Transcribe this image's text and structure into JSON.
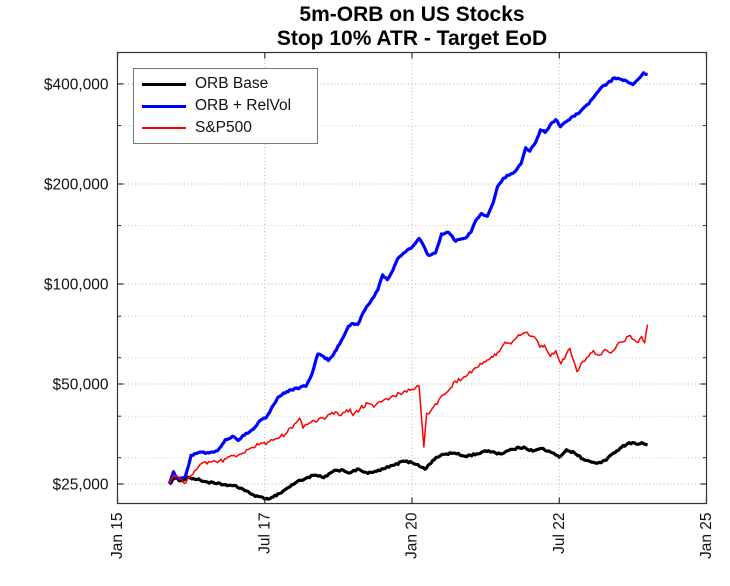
{
  "chart_data": {
    "type": "line",
    "title": "5m-ORB on US Stocks",
    "subtitle": "Stop 10% ATR - Target EoD",
    "grid": "on",
    "legend_position": "top-left",
    "x_axis": {
      "scale": "time-years",
      "lim": [
        2015.0,
        2025.0
      ],
      "ticks": [
        {
          "t": 2015.0,
          "label": "Jan 15"
        },
        {
          "t": 2017.5,
          "label": "Jul 17"
        },
        {
          "t": 2020.0,
          "label": "Jan 20"
        },
        {
          "t": 2022.5,
          "label": "Jul 22"
        },
        {
          "t": 2025.0,
          "label": "Jan 25"
        }
      ]
    },
    "y_axis": {
      "scale": "log",
      "lim": [
        21840,
        497400
      ],
      "ticks": [
        {
          "v": 25000,
          "label": "$25,000"
        },
        {
          "v": 50000,
          "label": "$50,000"
        },
        {
          "v": 100000,
          "label": "$100,000"
        },
        {
          "v": 200000,
          "label": "$200,000"
        },
        {
          "v": 400000,
          "label": "$400,000"
        }
      ],
      "minor_gridlines": [
        30000,
        40000,
        60000,
        80000,
        150000,
        300000
      ]
    },
    "series": [
      {
        "name": "ORB Base",
        "color": "#000000",
        "width": 3.2,
        "points": [
          [
            2015.88,
            25000
          ],
          [
            2015.96,
            26000
          ],
          [
            2016.08,
            25600
          ],
          [
            2016.2,
            26200
          ],
          [
            2016.35,
            25800
          ],
          [
            2016.5,
            25400
          ],
          [
            2016.65,
            25100
          ],
          [
            2016.8,
            24900
          ],
          [
            2016.95,
            24700
          ],
          [
            2017.1,
            24300
          ],
          [
            2017.25,
            23400
          ],
          [
            2017.4,
            22900
          ],
          [
            2017.5,
            22500
          ],
          [
            2017.62,
            22800
          ],
          [
            2017.75,
            23400
          ],
          [
            2017.9,
            24400
          ],
          [
            2018.05,
            25400
          ],
          [
            2018.2,
            26000
          ],
          [
            2018.35,
            26600
          ],
          [
            2018.5,
            26100
          ],
          [
            2018.65,
            27200
          ],
          [
            2018.8,
            27600
          ],
          [
            2018.95,
            27000
          ],
          [
            2019.1,
            27700
          ],
          [
            2019.25,
            26900
          ],
          [
            2019.4,
            27300
          ],
          [
            2019.55,
            27900
          ],
          [
            2019.7,
            28500
          ],
          [
            2019.85,
            29300
          ],
          [
            2020.0,
            29000
          ],
          [
            2020.1,
            28600
          ],
          [
            2020.22,
            27700
          ],
          [
            2020.35,
            29400
          ],
          [
            2020.5,
            30600
          ],
          [
            2020.7,
            31000
          ],
          [
            2020.9,
            30300
          ],
          [
            2021.1,
            30800
          ],
          [
            2021.3,
            31500
          ],
          [
            2021.5,
            30800
          ],
          [
            2021.7,
            31800
          ],
          [
            2021.9,
            32300
          ],
          [
            2022.05,
            31400
          ],
          [
            2022.2,
            32000
          ],
          [
            2022.35,
            31200
          ],
          [
            2022.5,
            30100
          ],
          [
            2022.62,
            31700
          ],
          [
            2022.76,
            31000
          ],
          [
            2022.93,
            29500
          ],
          [
            2023.05,
            29100
          ],
          [
            2023.15,
            28900
          ],
          [
            2023.3,
            29500
          ],
          [
            2023.42,
            31000
          ],
          [
            2023.56,
            32300
          ],
          [
            2023.69,
            33300
          ],
          [
            2023.8,
            33000
          ],
          [
            2023.9,
            33300
          ],
          [
            2024.0,
            32800
          ]
        ]
      },
      {
        "name": "ORB + RelVol",
        "color": "#0000ff",
        "width": 3.2,
        "points": [
          [
            2015.88,
            25000
          ],
          [
            2015.95,
            27200
          ],
          [
            2016.02,
            26000
          ],
          [
            2016.15,
            26300
          ],
          [
            2016.25,
            30500
          ],
          [
            2016.4,
            31200
          ],
          [
            2016.55,
            31000
          ],
          [
            2016.7,
            31500
          ],
          [
            2016.83,
            34000
          ],
          [
            2016.95,
            34800
          ],
          [
            2017.05,
            33800
          ],
          [
            2017.18,
            35500
          ],
          [
            2017.3,
            36500
          ],
          [
            2017.42,
            38800
          ],
          [
            2017.52,
            39500
          ],
          [
            2017.62,
            42500
          ],
          [
            2017.72,
            45500
          ],
          [
            2017.82,
            47000
          ],
          [
            2017.95,
            48000
          ],
          [
            2018.1,
            48800
          ],
          [
            2018.2,
            49200
          ],
          [
            2018.3,
            53500
          ],
          [
            2018.4,
            61500
          ],
          [
            2018.5,
            60500
          ],
          [
            2018.58,
            58800
          ],
          [
            2018.66,
            61000
          ],
          [
            2018.8,
            67500
          ],
          [
            2018.92,
            74500
          ],
          [
            2019.0,
            76000
          ],
          [
            2019.08,
            75500
          ],
          [
            2019.2,
            83500
          ],
          [
            2019.32,
            90000
          ],
          [
            2019.42,
            96000
          ],
          [
            2019.5,
            106500
          ],
          [
            2019.58,
            103000
          ],
          [
            2019.65,
            108000
          ],
          [
            2019.76,
            119500
          ],
          [
            2019.86,
            124000
          ],
          [
            2020.0,
            129000
          ],
          [
            2020.12,
            137000
          ],
          [
            2020.2,
            130000
          ],
          [
            2020.28,
            122000
          ],
          [
            2020.4,
            124000
          ],
          [
            2020.5,
            141500
          ],
          [
            2020.62,
            143000
          ],
          [
            2020.74,
            134500
          ],
          [
            2020.88,
            137000
          ],
          [
            2021.0,
            143000
          ],
          [
            2021.1,
            157000
          ],
          [
            2021.18,
            163000
          ],
          [
            2021.28,
            160000
          ],
          [
            2021.38,
            176000
          ],
          [
            2021.45,
            196000
          ],
          [
            2021.55,
            208000
          ],
          [
            2021.65,
            212500
          ],
          [
            2021.75,
            218000
          ],
          [
            2021.85,
            230000
          ],
          [
            2021.93,
            257000
          ],
          [
            2022.0,
            251000
          ],
          [
            2022.1,
            267000
          ],
          [
            2022.18,
            291000
          ],
          [
            2022.26,
            286000
          ],
          [
            2022.35,
            302000
          ],
          [
            2022.44,
            312500
          ],
          [
            2022.52,
            297500
          ],
          [
            2022.62,
            308000
          ],
          [
            2022.7,
            317000
          ],
          [
            2022.85,
            329000
          ],
          [
            2023.0,
            348000
          ],
          [
            2023.1,
            368000
          ],
          [
            2023.2,
            388000
          ],
          [
            2023.32,
            402000
          ],
          [
            2023.44,
            417500
          ],
          [
            2023.55,
            413000
          ],
          [
            2023.65,
            407500
          ],
          [
            2023.75,
            398000
          ],
          [
            2023.85,
            415000
          ],
          [
            2023.93,
            432000
          ],
          [
            2024.0,
            427000
          ]
        ]
      },
      {
        "name": "S&P500",
        "color": "#ff0000",
        "width": 1.5,
        "points": [
          [
            2015.88,
            25000
          ],
          [
            2015.96,
            26600
          ],
          [
            2016.05,
            26000
          ],
          [
            2016.13,
            25100
          ],
          [
            2016.25,
            26500
          ],
          [
            2016.4,
            28600
          ],
          [
            2016.55,
            29200
          ],
          [
            2016.7,
            29000
          ],
          [
            2016.85,
            29800
          ],
          [
            2016.98,
            30500
          ],
          [
            2017.1,
            30800
          ],
          [
            2017.25,
            32000
          ],
          [
            2017.4,
            32800
          ],
          [
            2017.55,
            33400
          ],
          [
            2017.7,
            34300
          ],
          [
            2017.85,
            35300
          ],
          [
            2018.0,
            37800
          ],
          [
            2018.09,
            39500
          ],
          [
            2018.15,
            36800
          ],
          [
            2018.28,
            38200
          ],
          [
            2018.4,
            38800
          ],
          [
            2018.55,
            39800
          ],
          [
            2018.7,
            41200
          ],
          [
            2018.8,
            40300
          ],
          [
            2018.95,
            42000
          ],
          [
            2019.0,
            40200
          ],
          [
            2019.12,
            42200
          ],
          [
            2019.25,
            43800
          ],
          [
            2019.35,
            42600
          ],
          [
            2019.45,
            44300
          ],
          [
            2019.6,
            44800
          ],
          [
            2019.7,
            46000
          ],
          [
            2019.85,
            47200
          ],
          [
            2020.0,
            48200
          ],
          [
            2020.12,
            49300
          ],
          [
            2020.2,
            32300
          ],
          [
            2020.25,
            40800
          ],
          [
            2020.32,
            41500
          ],
          [
            2020.45,
            44500
          ],
          [
            2020.55,
            46500
          ],
          [
            2020.65,
            48500
          ],
          [
            2020.73,
            51000
          ],
          [
            2020.85,
            51800
          ],
          [
            2020.95,
            53500
          ],
          [
            2021.1,
            56000
          ],
          [
            2021.22,
            58300
          ],
          [
            2021.35,
            60500
          ],
          [
            2021.48,
            62500
          ],
          [
            2021.58,
            66800
          ],
          [
            2021.68,
            66000
          ],
          [
            2021.78,
            69000
          ],
          [
            2021.92,
            71500
          ],
          [
            2022.02,
            69500
          ],
          [
            2022.1,
            68500
          ],
          [
            2022.17,
            64500
          ],
          [
            2022.25,
            65500
          ],
          [
            2022.35,
            60500
          ],
          [
            2022.44,
            63000
          ],
          [
            2022.53,
            57500
          ],
          [
            2022.62,
            61500
          ],
          [
            2022.68,
            64000
          ],
          [
            2022.8,
            54500
          ],
          [
            2022.9,
            58500
          ],
          [
            2023.0,
            60500
          ],
          [
            2023.08,
            63000
          ],
          [
            2023.18,
            61000
          ],
          [
            2023.28,
            63500
          ],
          [
            2023.38,
            62000
          ],
          [
            2023.48,
            65500
          ],
          [
            2023.58,
            67000
          ],
          [
            2023.68,
            69800
          ],
          [
            2023.76,
            68000
          ],
          [
            2023.84,
            66800
          ],
          [
            2023.9,
            69500
          ],
          [
            2023.95,
            66500
          ],
          [
            2024.0,
            75500
          ]
        ]
      }
    ]
  }
}
